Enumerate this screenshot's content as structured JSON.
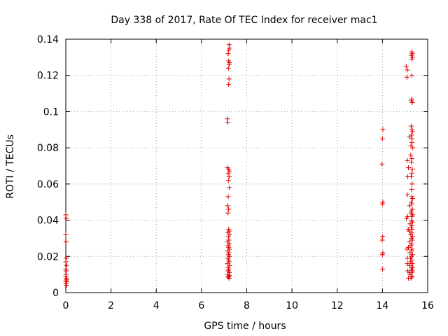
{
  "chart_data": {
    "type": "scatter",
    "title": "Day 338 of 2017, Rate Of TEC Index for receiver mac1",
    "xlabel": "GPS time / hours",
    "ylabel": "ROTI / TECUs",
    "xlim": [
      0,
      16
    ],
    "ylim": [
      0,
      0.14
    ],
    "xticks": [
      "0",
      "2",
      "4",
      "6",
      "8",
      "10",
      "12",
      "14",
      "16"
    ],
    "yticks": [
      "0",
      "0.02",
      "0.04",
      "0.06",
      "0.08",
      "0.1",
      "0.12",
      "0.14"
    ],
    "grid": true,
    "marker": "+",
    "color": "#e00000",
    "series": [
      {
        "points": [
          [
            0.0,
            0.043
          ],
          [
            0.02,
            0.041
          ],
          [
            0.0,
            0.032
          ],
          [
            0.01,
            0.028
          ],
          [
            0.02,
            0.019
          ],
          [
            0.0,
            0.017
          ],
          [
            0.03,
            0.015
          ],
          [
            0.0,
            0.013
          ],
          [
            0.02,
            0.012
          ],
          [
            0.01,
            0.01
          ],
          [
            0.0,
            0.009
          ],
          [
            0.03,
            0.008
          ],
          [
            0.02,
            0.007
          ],
          [
            0.0,
            0.006
          ],
          [
            0.04,
            0.007
          ],
          [
            0.01,
            0.005
          ],
          [
            0.03,
            0.004
          ],
          [
            0.05,
            0.006
          ],
          [
            7.22,
            0.137
          ],
          [
            7.2,
            0.134
          ],
          [
            7.18,
            0.132
          ],
          [
            7.24,
            0.135
          ],
          [
            7.2,
            0.128
          ],
          [
            7.22,
            0.126
          ],
          [
            7.19,
            0.124
          ],
          [
            7.23,
            0.127
          ],
          [
            7.22,
            0.118
          ],
          [
            7.2,
            0.115
          ],
          [
            7.14,
            0.096
          ],
          [
            7.16,
            0.094
          ],
          [
            7.15,
            0.069
          ],
          [
            7.2,
            0.068
          ],
          [
            7.24,
            0.067
          ],
          [
            7.18,
            0.066
          ],
          [
            7.22,
            0.064
          ],
          [
            7.19,
            0.062
          ],
          [
            7.23,
            0.058
          ],
          [
            7.18,
            0.053
          ],
          [
            7.16,
            0.048
          ],
          [
            7.2,
            0.046
          ],
          [
            7.17,
            0.044
          ],
          [
            7.2,
            0.035
          ],
          [
            7.22,
            0.034
          ],
          [
            7.17,
            0.033
          ],
          [
            7.25,
            0.032
          ],
          [
            7.19,
            0.031
          ],
          [
            7.21,
            0.029
          ],
          [
            7.15,
            0.028
          ],
          [
            7.23,
            0.027
          ],
          [
            7.18,
            0.026
          ],
          [
            7.2,
            0.025
          ],
          [
            7.24,
            0.024
          ],
          [
            7.16,
            0.023
          ],
          [
            7.21,
            0.022
          ],
          [
            7.19,
            0.021
          ],
          [
            7.23,
            0.02
          ],
          [
            7.17,
            0.019
          ],
          [
            7.2,
            0.018
          ],
          [
            7.22,
            0.017
          ],
          [
            7.15,
            0.016
          ],
          [
            7.25,
            0.015
          ],
          [
            7.18,
            0.014
          ],
          [
            7.21,
            0.013
          ],
          [
            7.19,
            0.012
          ],
          [
            7.23,
            0.011
          ],
          [
            7.16,
            0.01
          ],
          [
            7.2,
            0.009
          ],
          [
            7.22,
            0.008
          ],
          [
            7.18,
            0.0085
          ],
          [
            7.24,
            0.0095
          ],
          [
            7.17,
            0.012
          ],
          [
            14.02,
            0.09
          ],
          [
            14.0,
            0.085
          ],
          [
            13.98,
            0.071
          ],
          [
            14.02,
            0.05
          ],
          [
            14.0,
            0.049
          ],
          [
            14.01,
            0.031
          ],
          [
            13.99,
            0.029
          ],
          [
            14.02,
            0.022
          ],
          [
            14.0,
            0.021
          ],
          [
            14.01,
            0.013
          ],
          [
            15.05,
            0.125
          ],
          [
            15.1,
            0.123
          ],
          [
            15.08,
            0.119
          ],
          [
            15.3,
            0.133
          ],
          [
            15.32,
            0.132
          ],
          [
            15.28,
            0.131
          ],
          [
            15.3,
            0.129
          ],
          [
            15.33,
            0.13
          ],
          [
            15.3,
            0.12
          ],
          [
            15.28,
            0.106
          ],
          [
            15.32,
            0.105
          ],
          [
            15.3,
            0.107
          ],
          [
            15.27,
            0.092
          ],
          [
            15.3,
            0.09
          ],
          [
            15.33,
            0.089
          ],
          [
            15.28,
            0.087
          ],
          [
            15.31,
            0.085
          ],
          [
            15.3,
            0.083
          ],
          [
            15.26,
            0.081
          ],
          [
            15.34,
            0.08
          ],
          [
            15.2,
            0.086
          ],
          [
            15.25,
            0.076
          ],
          [
            15.3,
            0.074
          ],
          [
            15.28,
            0.072
          ],
          [
            15.1,
            0.073
          ],
          [
            15.32,
            0.068
          ],
          [
            15.15,
            0.069
          ],
          [
            15.3,
            0.066
          ],
          [
            15.27,
            0.064
          ],
          [
            15.12,
            0.064
          ],
          [
            15.31,
            0.06
          ],
          [
            15.29,
            0.057
          ],
          [
            15.1,
            0.054
          ],
          [
            15.3,
            0.053
          ],
          [
            15.33,
            0.052
          ],
          [
            15.27,
            0.05
          ],
          [
            15.3,
            0.049
          ],
          [
            15.2,
            0.048
          ],
          [
            15.32,
            0.046
          ],
          [
            15.26,
            0.044
          ],
          [
            15.3,
            0.042
          ],
          [
            15.12,
            0.042
          ],
          [
            15.28,
            0.04
          ],
          [
            15.33,
            0.039
          ],
          [
            15.22,
            0.038
          ],
          [
            15.3,
            0.037
          ],
          [
            15.27,
            0.036
          ],
          [
            15.31,
            0.035
          ],
          [
            15.18,
            0.034
          ],
          [
            15.3,
            0.033
          ],
          [
            15.25,
            0.032
          ],
          [
            15.33,
            0.031
          ],
          [
            15.28,
            0.03
          ],
          [
            15.32,
            0.029
          ],
          [
            15.2,
            0.028
          ],
          [
            15.3,
            0.027
          ],
          [
            15.26,
            0.026
          ],
          [
            15.15,
            0.025
          ],
          [
            15.31,
            0.024
          ],
          [
            15.29,
            0.023
          ],
          [
            15.22,
            0.022
          ],
          [
            15.33,
            0.021
          ],
          [
            15.28,
            0.02
          ],
          [
            15.1,
            0.019
          ],
          [
            15.3,
            0.018
          ],
          [
            15.25,
            0.017
          ],
          [
            15.32,
            0.016
          ],
          [
            15.18,
            0.015
          ],
          [
            15.3,
            0.014
          ],
          [
            15.27,
            0.013
          ],
          [
            15.12,
            0.012
          ],
          [
            15.33,
            0.012
          ],
          [
            15.29,
            0.011
          ],
          [
            15.22,
            0.01
          ],
          [
            15.3,
            0.009
          ],
          [
            15.15,
            0.008
          ],
          [
            15.26,
            0.008
          ],
          [
            15.32,
            0.009
          ],
          [
            15.2,
            0.011
          ],
          [
            15.34,
            0.014
          ],
          [
            15.1,
            0.016
          ],
          [
            15.24,
            0.019
          ],
          [
            15.08,
            0.024
          ],
          [
            15.14,
            0.035
          ],
          [
            15.06,
            0.041
          ],
          [
            15.28,
            0.045
          ],
          [
            15.34,
            0.043
          ]
        ]
      }
    ]
  }
}
